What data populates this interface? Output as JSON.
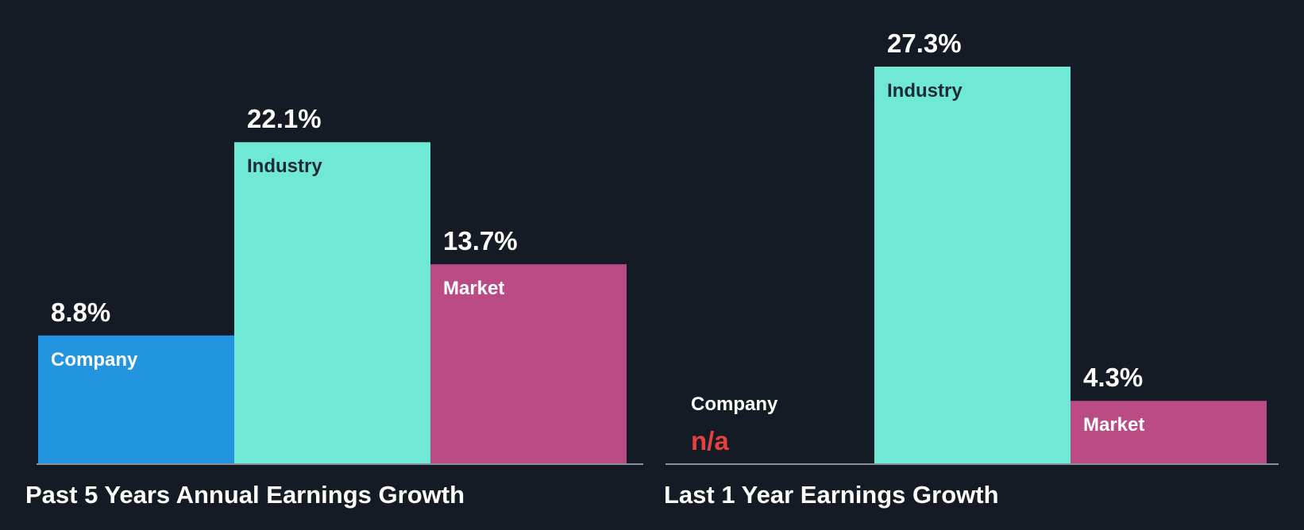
{
  "chart_data": [
    {
      "type": "bar",
      "title": "Past 5 Years Annual Earnings Growth",
      "categories": [
        "Company",
        "Industry",
        "Market"
      ],
      "values": [
        8.8,
        22.1,
        13.7
      ],
      "value_labels": [
        "8.8%",
        "22.1%",
        "13.7%"
      ],
      "colors": [
        "#2394e0",
        "#6fe8d6",
        "#bb4b85"
      ],
      "label_colors": [
        "#ffffff",
        "#1c2b36",
        "#ffffff"
      ],
      "ylim": [
        0,
        27.3
      ]
    },
    {
      "type": "bar",
      "title": "Last 1 Year Earnings Growth",
      "categories": [
        "Company",
        "Industry",
        "Market"
      ],
      "values": [
        null,
        27.3,
        4.3
      ],
      "value_labels": [
        "n/a",
        "27.3%",
        "4.3%"
      ],
      "colors": [
        "#2394e0",
        "#6fe8d6",
        "#bb4b85"
      ],
      "label_colors": [
        "#ffffff",
        "#1c2b36",
        "#ffffff"
      ],
      "na_color": "#e8403f",
      "ylim": [
        0,
        27.3
      ]
    }
  ]
}
